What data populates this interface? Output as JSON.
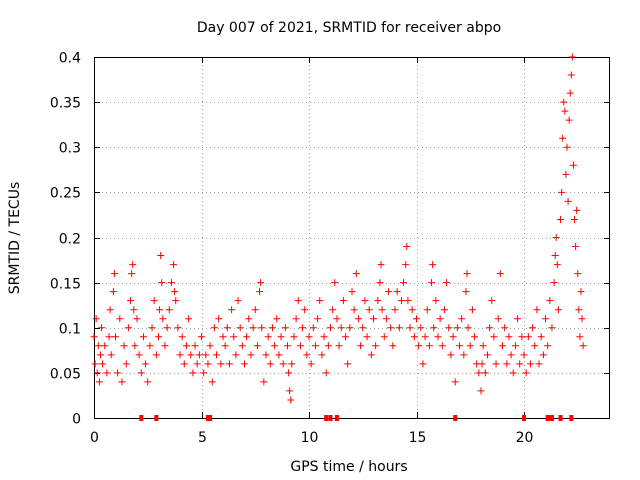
{
  "chart_data": {
    "type": "scatter",
    "title": "Day 007 of 2021, SRMTID for receiver abpo",
    "xlabel": "GPS time / hours",
    "ylabel": "SRMTID / TECUs",
    "xlim": [
      0,
      24
    ],
    "ylim": [
      0,
      0.4
    ],
    "x_ticks": [
      0,
      5,
      10,
      15,
      20
    ],
    "x_tick_labels": [
      "0",
      "5",
      "10",
      "15",
      "20"
    ],
    "y_ticks": [
      0,
      0.05,
      0.1,
      0.15,
      0.2,
      0.25,
      0.3,
      0.35,
      0.4
    ],
    "y_tick_labels": [
      "0",
      "0.05",
      "0.1",
      "0.15",
      "0.2",
      "0.25",
      "0.3",
      "0.35",
      "0.4"
    ],
    "grid": true,
    "marker": "+",
    "color": "#ff0000",
    "series": [
      {
        "name": "SRMTID",
        "points": [
          [
            0.0,
            0.09
          ],
          [
            0.05,
            0.06
          ],
          [
            0.1,
            0.11
          ],
          [
            0.15,
            0.05
          ],
          [
            0.2,
            0.08
          ],
          [
            0.25,
            0.04
          ],
          [
            0.3,
            0.07
          ],
          [
            0.35,
            0.1
          ],
          [
            0.4,
            0.06
          ],
          [
            0.5,
            0.08
          ],
          [
            0.6,
            0.05
          ],
          [
            0.7,
            0.09
          ],
          [
            0.75,
            0.12
          ],
          [
            0.8,
            0.07
          ],
          [
            0.9,
            0.14
          ],
          [
            0.95,
            0.16
          ],
          [
            1.0,
            0.09
          ],
          [
            1.1,
            0.05
          ],
          [
            1.2,
            0.11
          ],
          [
            1.3,
            0.04
          ],
          [
            1.4,
            0.08
          ],
          [
            1.5,
            0.06
          ],
          [
            1.6,
            0.1
          ],
          [
            1.7,
            0.13
          ],
          [
            1.75,
            0.16
          ],
          [
            1.8,
            0.17
          ],
          [
            1.85,
            0.12
          ],
          [
            1.9,
            0.08
          ],
          [
            2.0,
            0.11
          ],
          [
            2.1,
            0.07
          ],
          [
            2.2,
            0.05
          ],
          [
            2.3,
            0.09
          ],
          [
            2.4,
            0.06
          ],
          [
            2.5,
            0.04
          ],
          [
            2.6,
            0.08
          ],
          [
            2.7,
            0.1
          ],
          [
            2.8,
            0.13
          ],
          [
            2.9,
            0.07
          ],
          [
            3.0,
            0.09
          ],
          [
            3.05,
            0.12
          ],
          [
            3.1,
            0.18
          ],
          [
            3.15,
            0.15
          ],
          [
            3.2,
            0.11
          ],
          [
            3.3,
            0.08
          ],
          [
            3.4,
            0.1
          ],
          [
            3.5,
            0.12
          ],
          [
            3.6,
            0.15
          ],
          [
            3.7,
            0.17
          ],
          [
            3.75,
            0.14
          ],
          [
            3.8,
            0.13
          ],
          [
            3.9,
            0.1
          ],
          [
            4.0,
            0.07
          ],
          [
            4.1,
            0.09
          ],
          [
            4.2,
            0.06
          ],
          [
            4.3,
            0.08
          ],
          [
            4.4,
            0.11
          ],
          [
            4.5,
            0.07
          ],
          [
            4.6,
            0.05
          ],
          [
            4.7,
            0.08
          ],
          [
            4.8,
            0.06
          ],
          [
            4.9,
            0.07
          ],
          [
            5.0,
            0.09
          ],
          [
            5.1,
            0.05
          ],
          [
            5.2,
            0.07
          ],
          [
            5.3,
            0.06
          ],
          [
            5.4,
            0.08
          ],
          [
            5.5,
            0.04
          ],
          [
            5.6,
            0.1
          ],
          [
            5.7,
            0.07
          ],
          [
            5.8,
            0.11
          ],
          [
            5.9,
            0.06
          ],
          [
            6.0,
            0.09
          ],
          [
            6.1,
            0.08
          ],
          [
            6.2,
            0.1
          ],
          [
            6.3,
            0.06
          ],
          [
            6.4,
            0.12
          ],
          [
            6.5,
            0.09
          ],
          [
            6.6,
            0.07
          ],
          [
            6.7,
            0.13
          ],
          [
            6.8,
            0.1
          ],
          [
            6.9,
            0.08
          ],
          [
            7.0,
            0.06
          ],
          [
            7.1,
            0.09
          ],
          [
            7.2,
            0.11
          ],
          [
            7.3,
            0.07
          ],
          [
            7.4,
            0.1
          ],
          [
            7.5,
            0.12
          ],
          [
            7.6,
            0.08
          ],
          [
            7.7,
            0.14
          ],
          [
            7.75,
            0.15
          ],
          [
            7.8,
            0.1
          ],
          [
            7.9,
            0.04
          ],
          [
            8.0,
            0.07
          ],
          [
            8.1,
            0.09
          ],
          [
            8.2,
            0.06
          ],
          [
            8.3,
            0.1
          ],
          [
            8.4,
            0.08
          ],
          [
            8.5,
            0.11
          ],
          [
            8.6,
            0.07
          ],
          [
            8.7,
            0.09
          ],
          [
            8.8,
            0.06
          ],
          [
            8.9,
            0.1
          ],
          [
            9.0,
            0.08
          ],
          [
            9.05,
            0.05
          ],
          [
            9.1,
            0.03
          ],
          [
            9.15,
            0.02
          ],
          [
            9.2,
            0.06
          ],
          [
            9.3,
            0.09
          ],
          [
            9.4,
            0.11
          ],
          [
            9.5,
            0.13
          ],
          [
            9.6,
            0.08
          ],
          [
            9.7,
            0.1
          ],
          [
            9.8,
            0.12
          ],
          [
            9.9,
            0.07
          ],
          [
            10.0,
            0.09
          ],
          [
            10.1,
            0.06
          ],
          [
            10.2,
            0.1
          ],
          [
            10.3,
            0.08
          ],
          [
            10.4,
            0.11
          ],
          [
            10.5,
            0.13
          ],
          [
            10.6,
            0.07
          ],
          [
            10.7,
            0.09
          ],
          [
            10.8,
            0.05
          ],
          [
            10.9,
            0.08
          ],
          [
            11.0,
            0.1
          ],
          [
            11.1,
            0.12
          ],
          [
            11.2,
            0.15
          ],
          [
            11.3,
            0.11
          ],
          [
            11.4,
            0.08
          ],
          [
            11.5,
            0.1
          ],
          [
            11.6,
            0.13
          ],
          [
            11.7,
            0.09
          ],
          [
            11.8,
            0.06
          ],
          [
            11.9,
            0.1
          ],
          [
            12.0,
            0.14
          ],
          [
            12.1,
            0.12
          ],
          [
            12.2,
            0.16
          ],
          [
            12.3,
            0.11
          ],
          [
            12.4,
            0.08
          ],
          [
            12.5,
            0.1
          ],
          [
            12.6,
            0.13
          ],
          [
            12.7,
            0.09
          ],
          [
            12.8,
            0.12
          ],
          [
            12.9,
            0.07
          ],
          [
            13.0,
            0.11
          ],
          [
            13.1,
            0.08
          ],
          [
            13.2,
            0.13
          ],
          [
            13.3,
            0.15
          ],
          [
            13.35,
            0.17
          ],
          [
            13.4,
            0.12
          ],
          [
            13.5,
            0.09
          ],
          [
            13.6,
            0.11
          ],
          [
            13.7,
            0.14
          ],
          [
            13.8,
            0.1
          ],
          [
            13.9,
            0.08
          ],
          [
            14.0,
            0.12
          ],
          [
            14.1,
            0.14
          ],
          [
            14.2,
            0.1
          ],
          [
            14.3,
            0.13
          ],
          [
            14.4,
            0.15
          ],
          [
            14.5,
            0.17
          ],
          [
            14.55,
            0.19
          ],
          [
            14.6,
            0.13
          ],
          [
            14.7,
            0.1
          ],
          [
            14.8,
            0.12
          ],
          [
            14.9,
            0.09
          ],
          [
            15.0,
            0.11
          ],
          [
            15.1,
            0.08
          ],
          [
            15.2,
            0.1
          ],
          [
            15.3,
            0.06
          ],
          [
            15.4,
            0.09
          ],
          [
            15.5,
            0.12
          ],
          [
            15.6,
            0.08
          ],
          [
            15.7,
            0.15
          ],
          [
            15.75,
            0.17
          ],
          [
            15.8,
            0.1
          ],
          [
            15.9,
            0.13
          ],
          [
            16.0,
            0.09
          ],
          [
            16.1,
            0.11
          ],
          [
            16.2,
            0.08
          ],
          [
            16.3,
            0.12
          ],
          [
            16.4,
            0.15
          ],
          [
            16.5,
            0.1
          ],
          [
            16.6,
            0.07
          ],
          [
            16.7,
            0.09
          ],
          [
            16.8,
            0.04
          ],
          [
            16.9,
            0.1
          ],
          [
            17.0,
            0.08
          ],
          [
            17.1,
            0.11
          ],
          [
            17.2,
            0.07
          ],
          [
            17.3,
            0.14
          ],
          [
            17.35,
            0.16
          ],
          [
            17.4,
            0.1
          ],
          [
            17.5,
            0.08
          ],
          [
            17.6,
            0.12
          ],
          [
            17.7,
            0.09
          ],
          [
            17.8,
            0.06
          ],
          [
            17.9,
            0.05
          ],
          [
            18.0,
            0.03
          ],
          [
            18.05,
            0.06
          ],
          [
            18.1,
            0.08
          ],
          [
            18.2,
            0.05
          ],
          [
            18.3,
            0.07
          ],
          [
            18.4,
            0.1
          ],
          [
            18.5,
            0.13
          ],
          [
            18.6,
            0.09
          ],
          [
            18.7,
            0.06
          ],
          [
            18.8,
            0.11
          ],
          [
            18.9,
            0.16
          ],
          [
            19.0,
            0.08
          ],
          [
            19.1,
            0.1
          ],
          [
            19.2,
            0.06
          ],
          [
            19.3,
            0.09
          ],
          [
            19.4,
            0.07
          ],
          [
            19.5,
            0.05
          ],
          [
            19.6,
            0.08
          ],
          [
            19.7,
            0.11
          ],
          [
            19.8,
            0.06
          ],
          [
            19.9,
            0.09
          ],
          [
            20.0,
            0.07
          ],
          [
            20.1,
            0.05
          ],
          [
            20.2,
            0.09
          ],
          [
            20.3,
            0.06
          ],
          [
            20.4,
            0.1
          ],
          [
            20.5,
            0.08
          ],
          [
            20.6,
            0.12
          ],
          [
            20.7,
            0.06
          ],
          [
            20.8,
            0.09
          ],
          [
            20.9,
            0.07
          ],
          [
            21.0,
            0.11
          ],
          [
            21.1,
            0.08
          ],
          [
            21.2,
            0.13
          ],
          [
            21.3,
            0.1
          ],
          [
            21.4,
            0.15
          ],
          [
            21.45,
            0.18
          ],
          [
            21.5,
            0.2
          ],
          [
            21.55,
            0.17
          ],
          [
            21.6,
            0.12
          ],
          [
            21.7,
            0.22
          ],
          [
            21.75,
            0.25
          ],
          [
            21.8,
            0.31
          ],
          [
            21.85,
            0.35
          ],
          [
            21.9,
            0.34
          ],
          [
            21.95,
            0.27
          ],
          [
            22.0,
            0.3
          ],
          [
            22.05,
            0.24
          ],
          [
            22.1,
            0.33
          ],
          [
            22.15,
            0.36
          ],
          [
            22.2,
            0.38
          ],
          [
            22.25,
            0.4
          ],
          [
            22.3,
            0.28
          ],
          [
            22.35,
            0.22
          ],
          [
            22.4,
            0.19
          ],
          [
            22.45,
            0.23
          ],
          [
            22.5,
            0.16
          ],
          [
            22.55,
            0.12
          ],
          [
            22.6,
            0.09
          ],
          [
            22.65,
            0.14
          ],
          [
            22.7,
            0.11
          ],
          [
            22.75,
            0.08
          ]
        ]
      }
    ],
    "bottom_markers_x": [
      2.2,
      2.9,
      5.3,
      5.4,
      10.8,
      11.0,
      11.3,
      16.8,
      20.0,
      21.1,
      21.2,
      21.3,
      21.7,
      22.2
    ]
  }
}
